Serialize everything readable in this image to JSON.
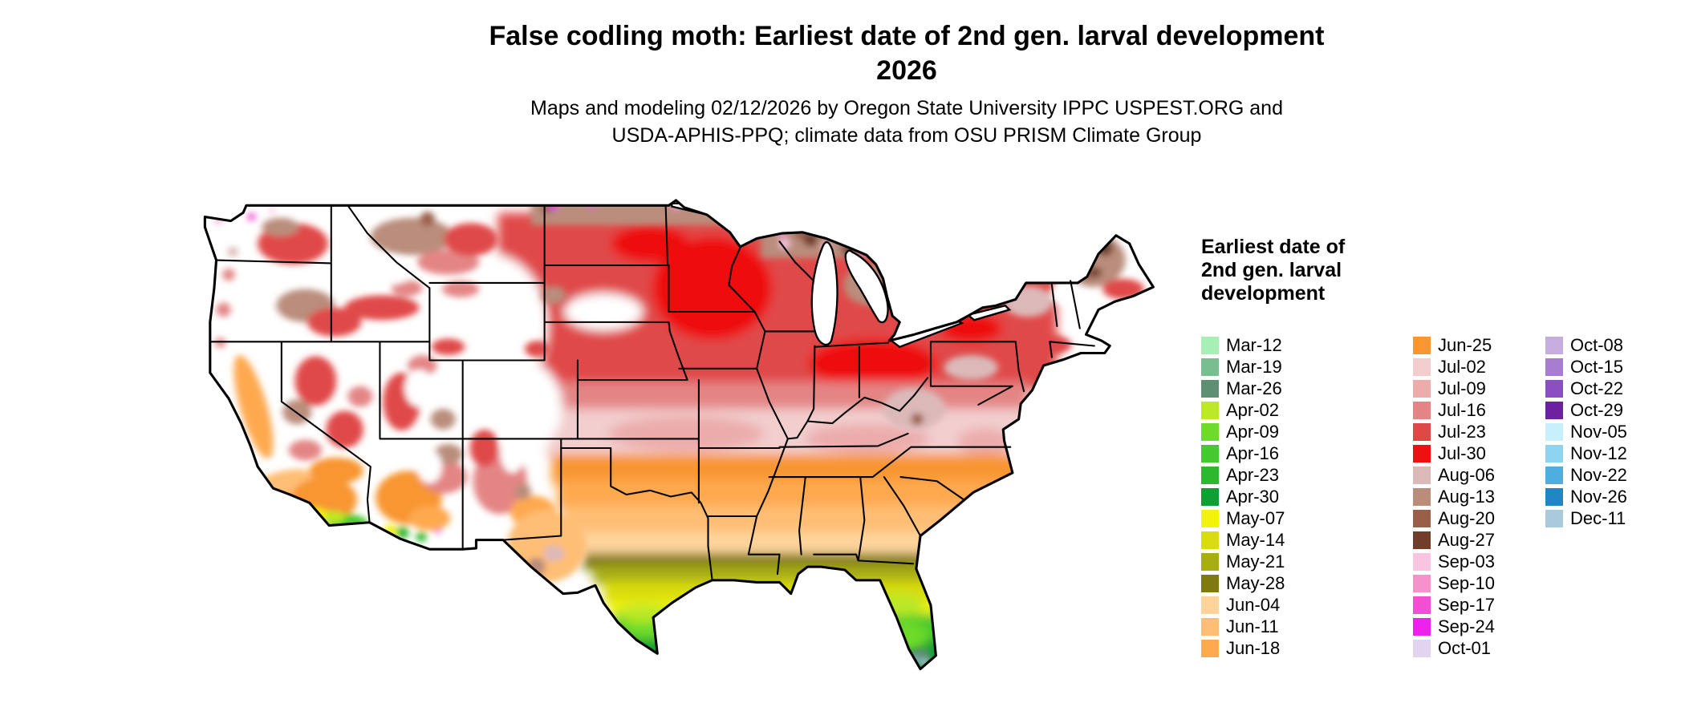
{
  "title": {
    "line1": "False codling moth: Earliest date of 2nd gen. larval development",
    "line2": "2026"
  },
  "subtitle": {
    "line1": "Maps and modeling 02/12/2026 by Oregon State University IPPC USPEST.ORG and",
    "line2": "USDA-APHIS-PPQ; climate data from OSU PRISM Climate Group"
  },
  "legend": {
    "heading": "Earliest date of 2nd gen. larval development",
    "columns": [
      {
        "entries": [
          {
            "label": "Mar-12",
            "color": "#A6EFB5"
          },
          {
            "label": "Mar-19",
            "color": "#79BE8F"
          },
          {
            "label": "Mar-26",
            "color": "#5F8F72"
          },
          {
            "label": "Apr-02",
            "color": "#BCE825"
          },
          {
            "label": "Apr-09",
            "color": "#6EDB29"
          },
          {
            "label": "Apr-16",
            "color": "#44C92E"
          },
          {
            "label": "Apr-23",
            "color": "#2DB92D"
          },
          {
            "label": "Apr-30",
            "color": "#0FA033"
          },
          {
            "label": "May-07",
            "color": "#F2F20D"
          },
          {
            "label": "May-14",
            "color": "#D9DC0F"
          },
          {
            "label": "May-21",
            "color": "#A8AE12"
          },
          {
            "label": "May-28",
            "color": "#7E7A10"
          },
          {
            "label": "Jun-04",
            "color": "#FFD49B"
          },
          {
            "label": "Jun-11",
            "color": "#FFBE75"
          },
          {
            "label": "Jun-18",
            "color": "#FFA94F"
          }
        ]
      },
      {
        "entries": [
          {
            "label": "Jun-25",
            "color": "#F89630"
          },
          {
            "label": "Jul-02",
            "color": "#F2CECE"
          },
          {
            "label": "Jul-09",
            "color": "#ECACAC"
          },
          {
            "label": "Jul-16",
            "color": "#E48585"
          },
          {
            "label": "Jul-23",
            "color": "#E04848"
          },
          {
            "label": "Jul-30",
            "color": "#EE1111"
          },
          {
            "label": "Aug-06",
            "color": "#DCB9B9"
          },
          {
            "label": "Aug-13",
            "color": "#BA8D7B"
          },
          {
            "label": "Aug-20",
            "color": "#9A5F49"
          },
          {
            "label": "Aug-27",
            "color": "#703E2B"
          },
          {
            "label": "Sep-03",
            "color": "#F8C4DF"
          },
          {
            "label": "Sep-10",
            "color": "#F691CB"
          },
          {
            "label": "Sep-17",
            "color": "#F44FD3"
          },
          {
            "label": "Sep-24",
            "color": "#EE22EE"
          },
          {
            "label": "Oct-01",
            "color": "#E2D3EF"
          }
        ]
      },
      {
        "entries": [
          {
            "label": "Oct-08",
            "color": "#C7ACE0"
          },
          {
            "label": "Oct-15",
            "color": "#A87DD1"
          },
          {
            "label": "Oct-22",
            "color": "#8A4FC0"
          },
          {
            "label": "Oct-29",
            "color": "#6B21A0"
          },
          {
            "label": "Nov-05",
            "color": "#C8F0FB"
          },
          {
            "label": "Nov-12",
            "color": "#8ED3F0"
          },
          {
            "label": "Nov-22",
            "color": "#4FAEE0"
          },
          {
            "label": "Nov-26",
            "color": "#2187C4"
          },
          {
            "label": "Dec-11",
            "color": "#A9C9DD"
          }
        ]
      }
    ]
  },
  "map": {
    "description": "Contiguous United States choropleth of earliest date of 2nd generation false codling moth larval development"
  }
}
